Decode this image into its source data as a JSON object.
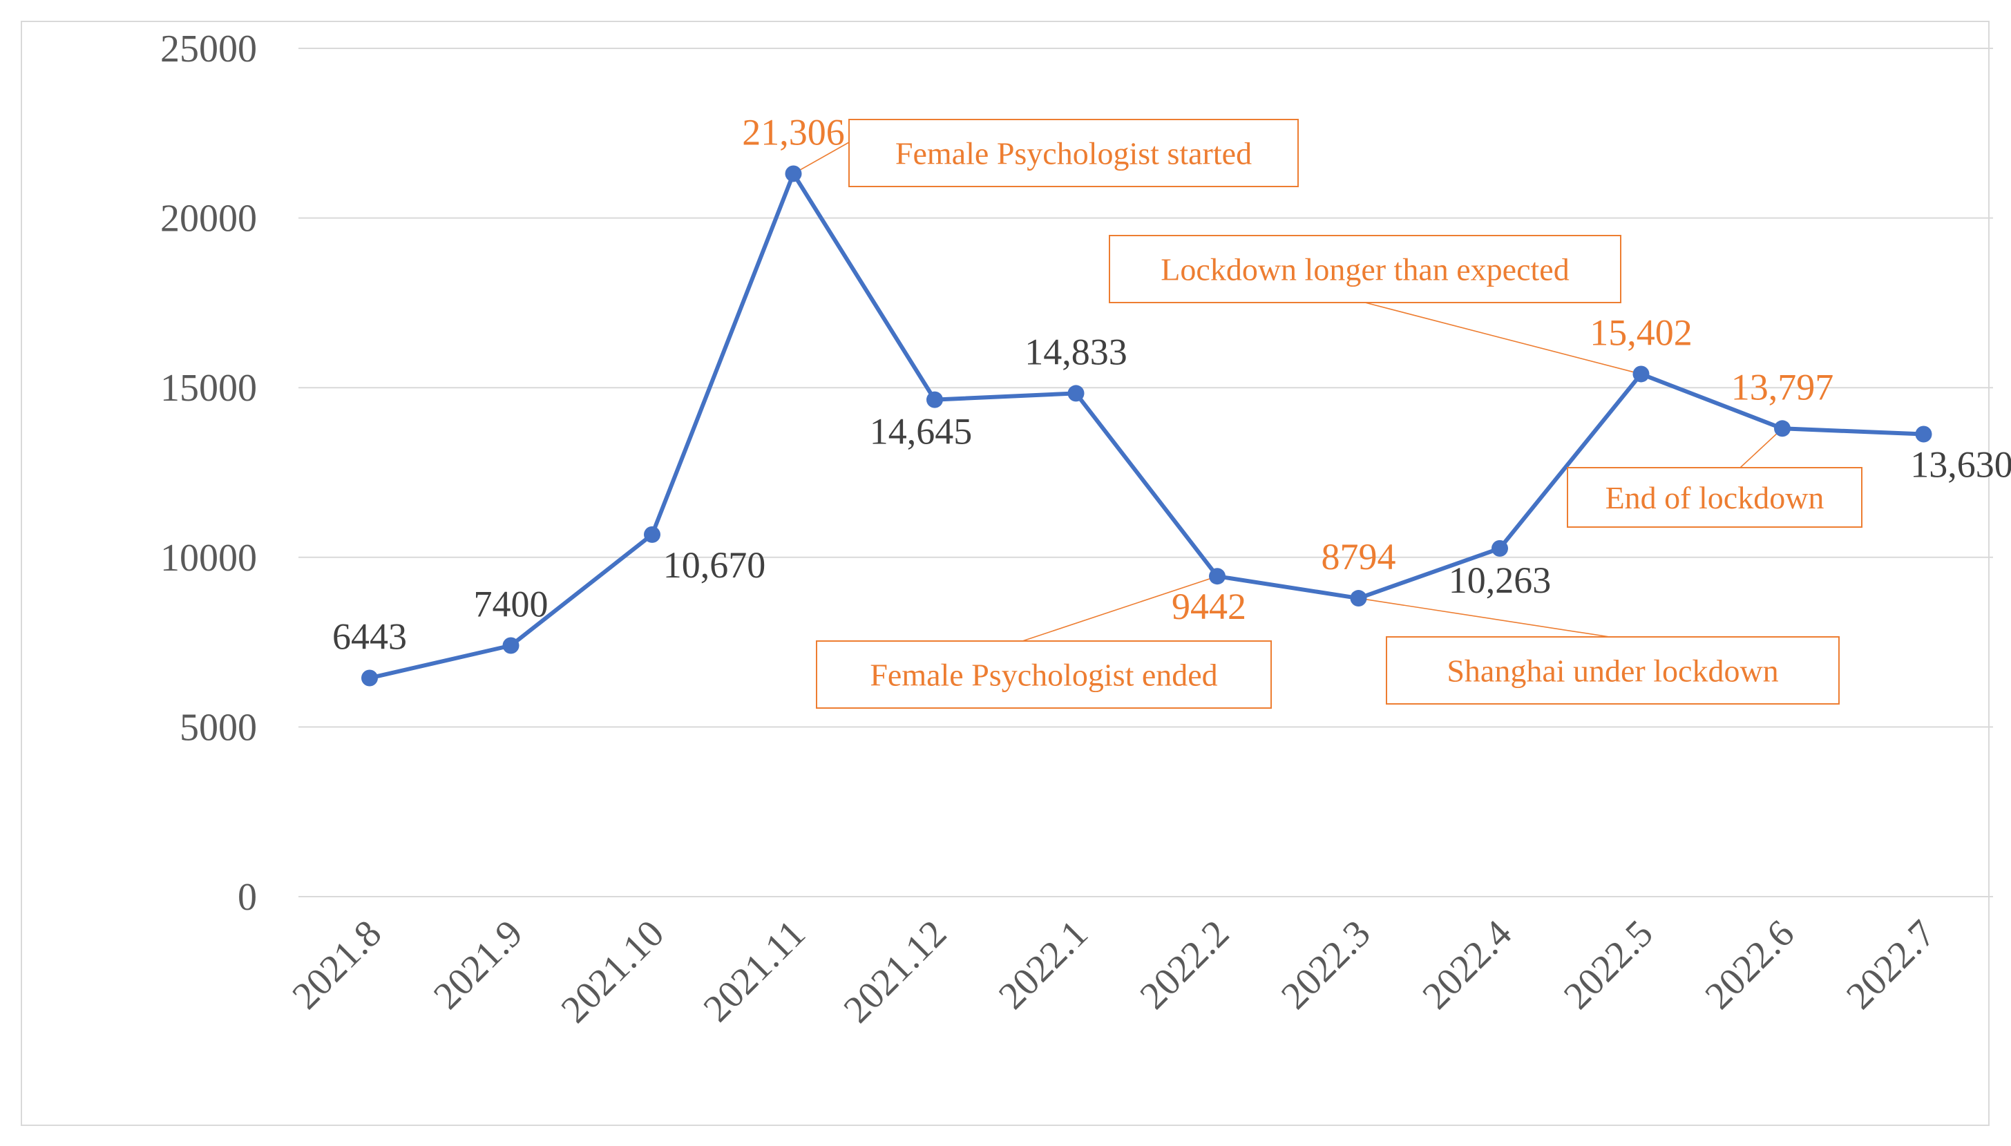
{
  "chart_data": {
    "type": "line",
    "title": "",
    "xlabel": "",
    "ylabel": "",
    "ylim": [
      0,
      25000
    ],
    "yticks": [
      0,
      5000,
      10000,
      15000,
      20000,
      25000
    ],
    "grid": true,
    "legend": "none",
    "categories": [
      "2021.8",
      "2021.9",
      "2021.10",
      "2021.11",
      "2021.12",
      "2022.1",
      "2022.2",
      "2022.3",
      "2022.4",
      "2022.5",
      "2022.6",
      "2022.7"
    ],
    "series": [
      {
        "values": [
          6443,
          7400,
          10670,
          21306,
          14645,
          14833,
          9442,
          8794,
          10263,
          15402,
          13797,
          13630
        ],
        "data_labels": [
          "6443",
          "7400",
          "10,670",
          "21,306",
          "14,645",
          "14,833",
          "9442",
          "8794",
          "10,263",
          "15,402",
          "13,797",
          "13,630"
        ],
        "color": "#4472c4"
      }
    ],
    "highlight_color": "#ed7d31",
    "label_color": "#404040",
    "highlighted_points": [
      3,
      6,
      7,
      9,
      10
    ],
    "annotations": [
      {
        "text": "Female Psychologist started",
        "point": 3
      },
      {
        "text": "Female Psychologist ended",
        "point": 6
      },
      {
        "text": "Shanghai under lockdown",
        "point": 7
      },
      {
        "text": "Lockdown longer than expected",
        "point": 9
      },
      {
        "text": "End of lockdown",
        "point": 10
      }
    ]
  }
}
